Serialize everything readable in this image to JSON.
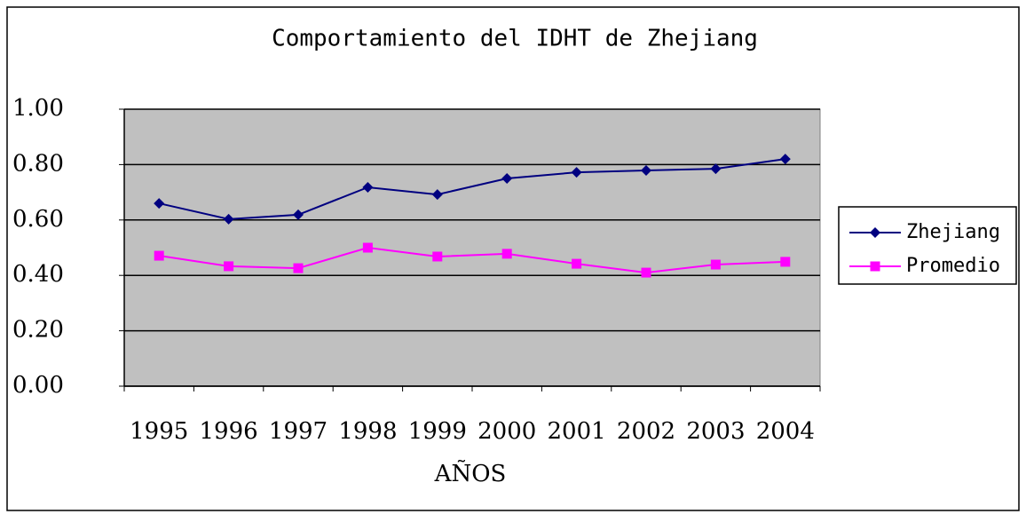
{
  "chart_data": {
    "type": "line",
    "title": "Comportamiento del IDHT de Zhejiang",
    "x_label": "AÑOS",
    "categories": [
      "1995",
      "1996",
      "1997",
      "1998",
      "1999",
      "2000",
      "2001",
      "2002",
      "2003",
      "2004"
    ],
    "series": [
      {
        "name": "Zhejiang",
        "color": "#000080",
        "marker": "diamond",
        "values": [
          0.66,
          0.603,
          0.619,
          0.718,
          0.692,
          0.75,
          0.772,
          0.779,
          0.785,
          0.82
        ]
      },
      {
        "name": "Promedio",
        "color": "#ff00ff",
        "marker": "square",
        "values": [
          0.471,
          0.433,
          0.426,
          0.5,
          0.468,
          0.478,
          0.442,
          0.41,
          0.439,
          0.449
        ]
      }
    ],
    "ylim": [
      0,
      1
    ],
    "yticks": [
      {
        "value": 0,
        "label": "0.00"
      },
      {
        "value": 0.2,
        "label": "0.20"
      },
      {
        "value": 0.4,
        "label": "0.40"
      },
      {
        "value": 0.6,
        "label": "0.60"
      },
      {
        "value": 0.8,
        "label": "0.80"
      },
      {
        "value": 1,
        "label": "1.00"
      }
    ],
    "grid": true,
    "legend": "right"
  }
}
